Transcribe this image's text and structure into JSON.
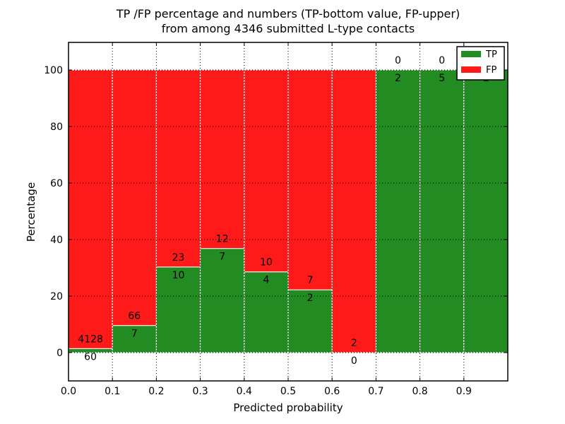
{
  "chart_data": {
    "type": "bar",
    "subtype": "stacked-percentage-histogram",
    "title_line1": "TP /FP percentage and numbers (TP-bottom value, FP-upper)",
    "title_line2": "from among 4346 submitted L-type contacts",
    "xlabel": "Predicted probability",
    "ylabel": "Percentage",
    "total_contacts": 4346,
    "xlim": [
      0.0,
      1.0
    ],
    "ylim": [
      -10,
      110
    ],
    "grid": true,
    "legend_position": "upper right",
    "legend_entries": [
      "TP",
      "FP"
    ],
    "bin_edges": [
      0.0,
      0.1,
      0.2,
      0.3,
      0.4,
      0.5,
      0.6,
      0.7,
      0.8,
      0.9,
      1.0
    ],
    "xtick_labels": [
      "0.0",
      "0.1",
      "0.2",
      "0.3",
      "0.4",
      "0.5",
      "0.6",
      "0.7",
      "0.8",
      "0.9"
    ],
    "ytick_values": [
      0,
      20,
      40,
      60,
      80,
      100
    ],
    "series": [
      {
        "name": "TP",
        "color": "#228b22",
        "counts": [
          60,
          7,
          10,
          7,
          4,
          2,
          0,
          2,
          5,
          1
        ],
        "percent": [
          1.43,
          9.59,
          30.3,
          36.84,
          28.57,
          22.22,
          0.0,
          100.0,
          100.0,
          100.0
        ]
      },
      {
        "name": "FP",
        "color": "#ff1a1a",
        "counts": [
          4128,
          66,
          23,
          12,
          10,
          7,
          2,
          0,
          0,
          0
        ],
        "percent": [
          98.57,
          90.41,
          69.7,
          63.16,
          71.43,
          77.78,
          100.0,
          0.0,
          0.0,
          0.0
        ]
      }
    ],
    "bar_edge_color": "#ffffff",
    "grid_color": "#000000"
  }
}
